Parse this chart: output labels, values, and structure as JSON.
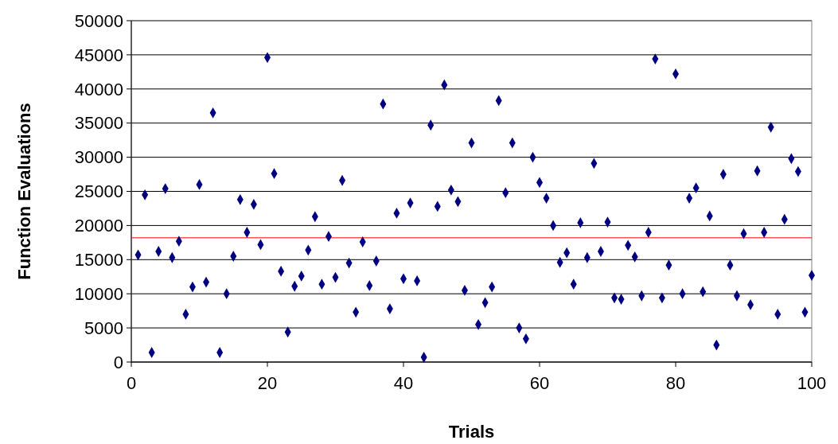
{
  "chart_data": {
    "type": "scatter",
    "xlabel": "Trials",
    "ylabel": "Function Evaluations",
    "x": [
      1,
      2,
      3,
      4,
      5,
      6,
      7,
      8,
      9,
      10,
      11,
      12,
      13,
      14,
      15,
      16,
      17,
      18,
      19,
      20,
      21,
      22,
      23,
      24,
      25,
      26,
      27,
      28,
      29,
      30,
      31,
      32,
      33,
      34,
      35,
      36,
      37,
      38,
      39,
      40,
      41,
      42,
      43,
      44,
      45,
      46,
      47,
      48,
      49,
      50,
      51,
      52,
      53,
      54,
      55,
      56,
      57,
      58,
      59,
      60,
      61,
      62,
      63,
      64,
      65,
      66,
      67,
      68,
      69,
      70,
      71,
      72,
      73,
      74,
      75,
      76,
      77,
      78,
      79,
      80,
      81,
      82,
      83,
      84,
      85,
      86,
      87,
      88,
      89,
      90,
      91,
      92,
      93,
      94,
      95,
      96,
      97,
      98,
      99,
      100
    ],
    "series": [
      {
        "color": "#000080",
        "values": [
          15700,
          24500,
          1400,
          16200,
          25400,
          15300,
          17700,
          7000,
          11000,
          26000,
          11700,
          36500,
          1400,
          10000,
          15500,
          23800,
          19000,
          23100,
          17200,
          44600,
          27600,
          13300,
          4400,
          11100,
          12600,
          16400,
          21300,
          11400,
          18400,
          12400,
          26600,
          14500,
          7300,
          17600,
          11200,
          14800,
          37800,
          7800,
          21800,
          12200,
          23300,
          11900,
          700,
          34700,
          22800,
          40600,
          25200,
          23500,
          10500,
          32100,
          5500,
          8700,
          11000,
          38300,
          24800,
          32100,
          5000,
          3400,
          30000,
          26300,
          24000,
          20000,
          14600,
          16000,
          11400,
          20400,
          15300,
          29100,
          16200,
          20500,
          9400,
          9200,
          17100,
          15400,
          9700,
          19000,
          44400,
          9400,
          14200,
          42200,
          10000,
          24000,
          25500,
          10300,
          21400,
          2500,
          27500,
          14200,
          9700,
          18800,
          8400,
          28000,
          19000,
          34400,
          7000,
          20900,
          29800,
          27900,
          7300,
          12700
        ]
      }
    ],
    "xlim": [
      0,
      100
    ],
    "xticks": [
      0,
      20,
      40,
      60,
      80,
      100
    ],
    "ylim": [
      0,
      50000
    ],
    "yticks": [
      0,
      5000,
      10000,
      15000,
      20000,
      25000,
      30000,
      35000,
      40000,
      45000,
      50000
    ],
    "grid": "y",
    "marker": "diamond",
    "ref_lines": [
      {
        "axis": "y",
        "value": 18200,
        "color": "#ff0000"
      }
    ]
  }
}
